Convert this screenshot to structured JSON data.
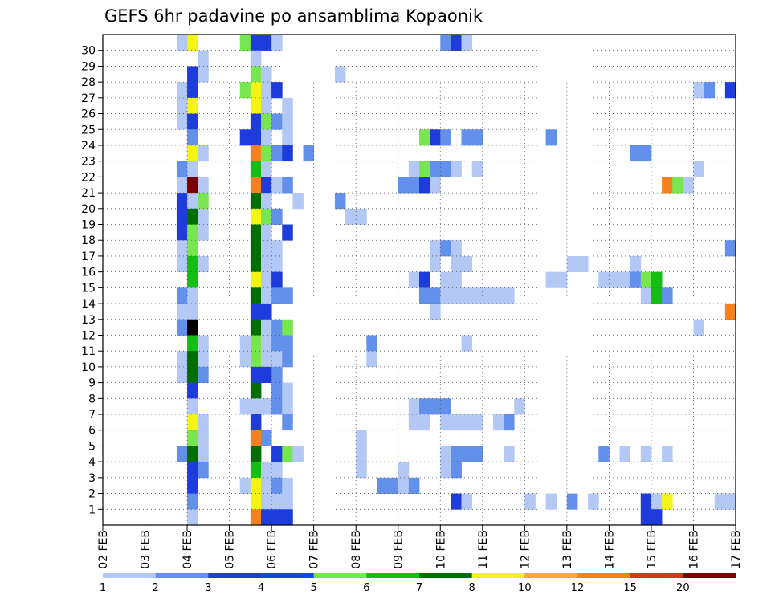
{
  "chart_data": {
    "type": "heatmap",
    "title": "GEFS 6hr padavine po ansamblima Kopaonik",
    "x_tick_labels": [
      "02 FEB",
      "03 FEB",
      "04 FEB",
      "05 FEB",
      "06 FEB",
      "07 FEB",
      "08 FEB",
      "09 FEB",
      "10 FEB",
      "11 FEB",
      "12 FEB",
      "13 FEB",
      "14 FEB",
      "15 FEB",
      "16 FEB",
      "17 FEB"
    ],
    "y_tick_labels": [
      "1",
      "2",
      "3",
      "4",
      "5",
      "6",
      "7",
      "8",
      "9",
      "10",
      "11",
      "12",
      "13",
      "14",
      "15",
      "16",
      "17",
      "18",
      "19",
      "20",
      "21",
      "22",
      "23",
      "24",
      "25",
      "26",
      "27",
      "28",
      "29",
      "30"
    ],
    "grid": true,
    "colorbar": {
      "labels": [
        "1",
        "2",
        "3",
        "4",
        "5",
        "6",
        "7",
        "8",
        "10",
        "12",
        "15",
        "20"
      ],
      "colors": [
        "#b4c8f5",
        "#6390eb",
        "#1e3cdc",
        "#1446e6",
        "#78e650",
        "#14be14",
        "#006e00",
        "#f5f514",
        "#f5aa32",
        "#f5821e",
        "#dc321e",
        "#780000"
      ]
    },
    "x_range": [
      "02 FEB 00Z",
      "17 FEB 00Z"
    ],
    "y_range": [
      0,
      30
    ],
    "cells_format": "[member, step(6h from 02 FEB 00Z), level]",
    "cells": [
      [
        30,
        8,
        8
      ],
      [
        30,
        7,
        1
      ],
      [
        30,
        13,
        5
      ],
      [
        30,
        14,
        3
      ],
      [
        30,
        15,
        3
      ],
      [
        30,
        16,
        1
      ],
      [
        30,
        32,
        2
      ],
      [
        30,
        33,
        3
      ],
      [
        30,
        34,
        1
      ],
      [
        29,
        9,
        1
      ],
      [
        29,
        14,
        1
      ],
      [
        28,
        8,
        3
      ],
      [
        28,
        9,
        1
      ],
      [
        28,
        14,
        5
      ],
      [
        28,
        15,
        1
      ],
      [
        28,
        22,
        1
      ],
      [
        27,
        7,
        1
      ],
      [
        27,
        8,
        3
      ],
      [
        27,
        13,
        5
      ],
      [
        27,
        14,
        8
      ],
      [
        27,
        15,
        1
      ],
      [
        27,
        16,
        3
      ],
      [
        27,
        56,
        1
      ],
      [
        27,
        57,
        2
      ],
      [
        27,
        59,
        3
      ],
      [
        26,
        7,
        1
      ],
      [
        26,
        8,
        8
      ],
      [
        26,
        14,
        8
      ],
      [
        26,
        15,
        1
      ],
      [
        26,
        17,
        1
      ],
      [
        25,
        7,
        1
      ],
      [
        25,
        8,
        3
      ],
      [
        25,
        14,
        3
      ],
      [
        25,
        15,
        5
      ],
      [
        25,
        16,
        2
      ],
      [
        25,
        17,
        1
      ],
      [
        24,
        8,
        2
      ],
      [
        24,
        13,
        3
      ],
      [
        24,
        14,
        3
      ],
      [
        24,
        15,
        1
      ],
      [
        24,
        17,
        1
      ],
      [
        24,
        30,
        5
      ],
      [
        24,
        31,
        3
      ],
      [
        24,
        32,
        2
      ],
      [
        24,
        34,
        2
      ],
      [
        24,
        35,
        2
      ],
      [
        24,
        42,
        2
      ],
      [
        23,
        8,
        8
      ],
      [
        23,
        9,
        1
      ],
      [
        23,
        14,
        10
      ],
      [
        23,
        15,
        5
      ],
      [
        23,
        16,
        2
      ],
      [
        23,
        17,
        3
      ],
      [
        23,
        19,
        2
      ],
      [
        23,
        50,
        2
      ],
      [
        23,
        51,
        2
      ],
      [
        22,
        7,
        2
      ],
      [
        22,
        8,
        1
      ],
      [
        22,
        14,
        6
      ],
      [
        22,
        15,
        1
      ],
      [
        22,
        29,
        1
      ],
      [
        22,
        30,
        5
      ],
      [
        22,
        31,
        2
      ],
      [
        22,
        32,
        2
      ],
      [
        22,
        33,
        1
      ],
      [
        22,
        35,
        1
      ],
      [
        22,
        56,
        1
      ],
      [
        21,
        7,
        1
      ],
      [
        21,
        8,
        12
      ],
      [
        21,
        9,
        1
      ],
      [
        21,
        14,
        10
      ],
      [
        21,
        15,
        3
      ],
      [
        21,
        16,
        1
      ],
      [
        21,
        17,
        2
      ],
      [
        21,
        28,
        2
      ],
      [
        21,
        29,
        2
      ],
      [
        21,
        30,
        3
      ],
      [
        21,
        31,
        1
      ],
      [
        21,
        53,
        10
      ],
      [
        21,
        54,
        5
      ],
      [
        21,
        55,
        1
      ],
      [
        20,
        7,
        3
      ],
      [
        20,
        8,
        1
      ],
      [
        20,
        9,
        5
      ],
      [
        20,
        14,
        7
      ],
      [
        20,
        15,
        1
      ],
      [
        20,
        18,
        1
      ],
      [
        20,
        22,
        2
      ],
      [
        19,
        7,
        3
      ],
      [
        19,
        8,
        7
      ],
      [
        19,
        9,
        1
      ],
      [
        19,
        14,
        8
      ],
      [
        19,
        15,
        5
      ],
      [
        19,
        16,
        2
      ],
      [
        19,
        23,
        1
      ],
      [
        19,
        24,
        1
      ],
      [
        18,
        7,
        3
      ],
      [
        18,
        8,
        5
      ],
      [
        18,
        9,
        1
      ],
      [
        18,
        14,
        7
      ],
      [
        18,
        15,
        1
      ],
      [
        18,
        17,
        3
      ],
      [
        17,
        7,
        1
      ],
      [
        17,
        8,
        5
      ],
      [
        17,
        14,
        7
      ],
      [
        17,
        15,
        1
      ],
      [
        17,
        16,
        1
      ],
      [
        17,
        31,
        1
      ],
      [
        17,
        32,
        2
      ],
      [
        17,
        33,
        1
      ],
      [
        17,
        59,
        2
      ],
      [
        16,
        7,
        1
      ],
      [
        16,
        8,
        6
      ],
      [
        16,
        9,
        1
      ],
      [
        16,
        14,
        7
      ],
      [
        16,
        15,
        1
      ],
      [
        16,
        16,
        1
      ],
      [
        16,
        31,
        1
      ],
      [
        16,
        33,
        1
      ],
      [
        16,
        34,
        1
      ],
      [
        16,
        44,
        1
      ],
      [
        16,
        45,
        1
      ],
      [
        16,
        50,
        1
      ],
      [
        15,
        8,
        6
      ],
      [
        15,
        14,
        8
      ],
      [
        15,
        15,
        1
      ],
      [
        15,
        16,
        3
      ],
      [
        15,
        29,
        1
      ],
      [
        15,
        30,
        3
      ],
      [
        15,
        32,
        1
      ],
      [
        15,
        33,
        1
      ],
      [
        15,
        42,
        1
      ],
      [
        15,
        43,
        1
      ],
      [
        15,
        47,
        1
      ],
      [
        15,
        48,
        1
      ],
      [
        15,
        49,
        1
      ],
      [
        15,
        50,
        2
      ],
      [
        15,
        51,
        5
      ],
      [
        15,
        52,
        6
      ],
      [
        14,
        7,
        2
      ],
      [
        14,
        8,
        1
      ],
      [
        14,
        14,
        7
      ],
      [
        14,
        15,
        1
      ],
      [
        14,
        16,
        2
      ],
      [
        14,
        17,
        2
      ],
      [
        14,
        30,
        2
      ],
      [
        14,
        31,
        2
      ],
      [
        14,
        32,
        1
      ],
      [
        14,
        33,
        1
      ],
      [
        14,
        34,
        1
      ],
      [
        14,
        35,
        1
      ],
      [
        14,
        36,
        1
      ],
      [
        14,
        37,
        1
      ],
      [
        14,
        38,
        1
      ],
      [
        14,
        51,
        1
      ],
      [
        14,
        52,
        6
      ],
      [
        14,
        53,
        2
      ],
      [
        13,
        7,
        1
      ],
      [
        13,
        8,
        1
      ],
      [
        13,
        14,
        3
      ],
      [
        13,
        15,
        3
      ],
      [
        13,
        31,
        1
      ],
      [
        13,
        59,
        10
      ],
      [
        12,
        7,
        2
      ],
      [
        12,
        8,
        14
      ],
      [
        12,
        14,
        7
      ],
      [
        12,
        15,
        1
      ],
      [
        12,
        16,
        2
      ],
      [
        12,
        17,
        5
      ],
      [
        12,
        56,
        1
      ],
      [
        11,
        8,
        6
      ],
      [
        11,
        9,
        1
      ],
      [
        11,
        13,
        1
      ],
      [
        11,
        14,
        5
      ],
      [
        11,
        15,
        1
      ],
      [
        11,
        16,
        2
      ],
      [
        11,
        17,
        2
      ],
      [
        11,
        25,
        2
      ],
      [
        11,
        34,
        1
      ],
      [
        10,
        7,
        1
      ],
      [
        10,
        8,
        7
      ],
      [
        10,
        9,
        1
      ],
      [
        10,
        13,
        1
      ],
      [
        10,
        14,
        5
      ],
      [
        10,
        15,
        1
      ],
      [
        10,
        16,
        1
      ],
      [
        10,
        17,
        2
      ],
      [
        10,
        25,
        1
      ],
      [
        9,
        7,
        1
      ],
      [
        9,
        8,
        7
      ],
      [
        9,
        9,
        2
      ],
      [
        9,
        14,
        3
      ],
      [
        9,
        15,
        3
      ],
      [
        9,
        16,
        2
      ],
      [
        8,
        8,
        3
      ],
      [
        8,
        14,
        7
      ],
      [
        8,
        16,
        2
      ],
      [
        8,
        17,
        1
      ],
      [
        7,
        8,
        1
      ],
      [
        7,
        13,
        1
      ],
      [
        7,
        14,
        1
      ],
      [
        7,
        15,
        1
      ],
      [
        7,
        16,
        2
      ],
      [
        7,
        17,
        1
      ],
      [
        7,
        29,
        1
      ],
      [
        7,
        30,
        2
      ],
      [
        7,
        31,
        2
      ],
      [
        7,
        32,
        2
      ],
      [
        7,
        39,
        1
      ],
      [
        6,
        8,
        8
      ],
      [
        6,
        9,
        1
      ],
      [
        6,
        14,
        3
      ],
      [
        6,
        17,
        2
      ],
      [
        6,
        29,
        1
      ],
      [
        6,
        30,
        1
      ],
      [
        6,
        32,
        1
      ],
      [
        6,
        33,
        1
      ],
      [
        6,
        34,
        1
      ],
      [
        6,
        35,
        1
      ],
      [
        6,
        37,
        1
      ],
      [
        6,
        38,
        2
      ],
      [
        5,
        8,
        5
      ],
      [
        5,
        9,
        1
      ],
      [
        5,
        14,
        10
      ],
      [
        5,
        15,
        2
      ],
      [
        5,
        24,
        1
      ],
      [
        4,
        7,
        2
      ],
      [
        4,
        8,
        7
      ],
      [
        4,
        9,
        1
      ],
      [
        4,
        14,
        7
      ],
      [
        4,
        16,
        3
      ],
      [
        4,
        17,
        5
      ],
      [
        4,
        18,
        1
      ],
      [
        4,
        24,
        1
      ],
      [
        4,
        32,
        1
      ],
      [
        4,
        33,
        2
      ],
      [
        4,
        34,
        2
      ],
      [
        4,
        35,
        2
      ],
      [
        4,
        38,
        1
      ],
      [
        4,
        47,
        2
      ],
      [
        4,
        49,
        1
      ],
      [
        4,
        51,
        1
      ],
      [
        4,
        53,
        1
      ],
      [
        3,
        8,
        3
      ],
      [
        3,
        9,
        2
      ],
      [
        3,
        14,
        6
      ],
      [
        3,
        15,
        1
      ],
      [
        3,
        16,
        1
      ],
      [
        3,
        24,
        1
      ],
      [
        3,
        28,
        1
      ],
      [
        3,
        32,
        1
      ],
      [
        3,
        33,
        2
      ],
      [
        2,
        8,
        3
      ],
      [
        2,
        13,
        1
      ],
      [
        2,
        14,
        8
      ],
      [
        2,
        15,
        1
      ],
      [
        2,
        16,
        2
      ],
      [
        2,
        17,
        1
      ],
      [
        2,
        26,
        2
      ],
      [
        2,
        27,
        2
      ],
      [
        2,
        28,
        1
      ],
      [
        2,
        29,
        2
      ],
      [
        1,
        8,
        2
      ],
      [
        1,
        14,
        8
      ],
      [
        1,
        15,
        1
      ],
      [
        1,
        16,
        1
      ],
      [
        1,
        17,
        1
      ],
      [
        1,
        33,
        3
      ],
      [
        1,
        34,
        1
      ],
      [
        1,
        40,
        1
      ],
      [
        1,
        42,
        1
      ],
      [
        1,
        44,
        2
      ],
      [
        1,
        46,
        1
      ],
      [
        1,
        51,
        3
      ],
      [
        1,
        52,
        1
      ],
      [
        1,
        53,
        8
      ],
      [
        1,
        58,
        1
      ],
      [
        1,
        59,
        1
      ],
      [
        0,
        8,
        1
      ],
      [
        0,
        14,
        10
      ],
      [
        0,
        15,
        3
      ],
      [
        0,
        16,
        3
      ],
      [
        0,
        17,
        3
      ],
      [
        0,
        51,
        3
      ],
      [
        0,
        52,
        3
      ]
    ]
  }
}
